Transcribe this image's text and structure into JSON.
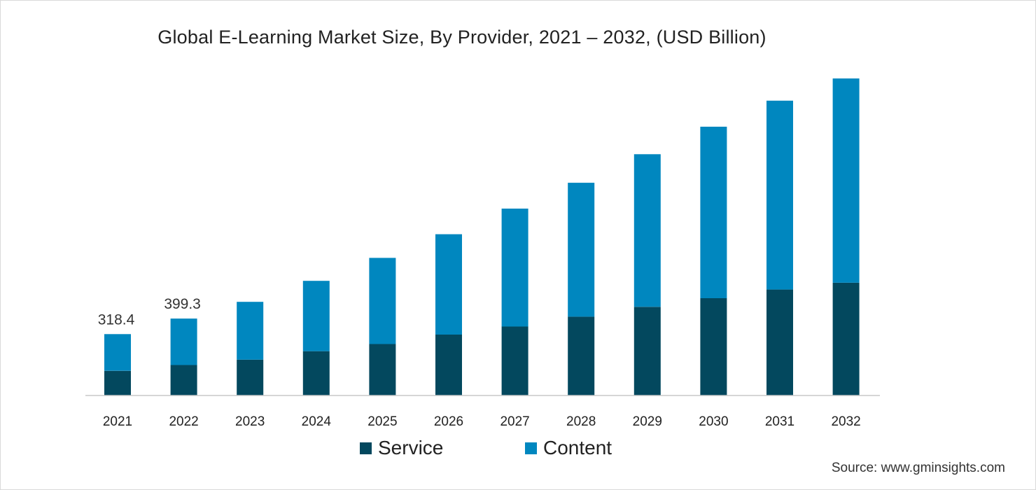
{
  "chart_data": {
    "type": "bar",
    "stacked": true,
    "title": "Global E-Learning Market Size, By Provider, 2021 – 2032, (USD Billion)",
    "xlabel": "",
    "ylabel": "",
    "categories": [
      "2021",
      "2022",
      "2023",
      "2024",
      "2025",
      "2026",
      "2027",
      "2028",
      "2029",
      "2030",
      "2031",
      "2032"
    ],
    "series": [
      {
        "name": "Service",
        "color": "#03485e",
        "values": [
          128,
          158,
          186,
          230,
          267,
          316,
          358,
          409,
          460,
          505,
          550,
          585
        ]
      },
      {
        "name": "Content",
        "color": "#0087bf",
        "values": [
          190.4,
          241.3,
          300,
          365,
          447,
          521,
          612,
          695,
          792,
          890,
          980,
          1060
        ]
      }
    ],
    "data_labels": [
      {
        "category": "2021",
        "text": "318.4"
      },
      {
        "category": "2022",
        "text": "399.3"
      }
    ],
    "ylim": [
      0,
      1700
    ],
    "grid": false,
    "legend_position": "bottom-center"
  },
  "source": "Source: www.gminsights.com"
}
